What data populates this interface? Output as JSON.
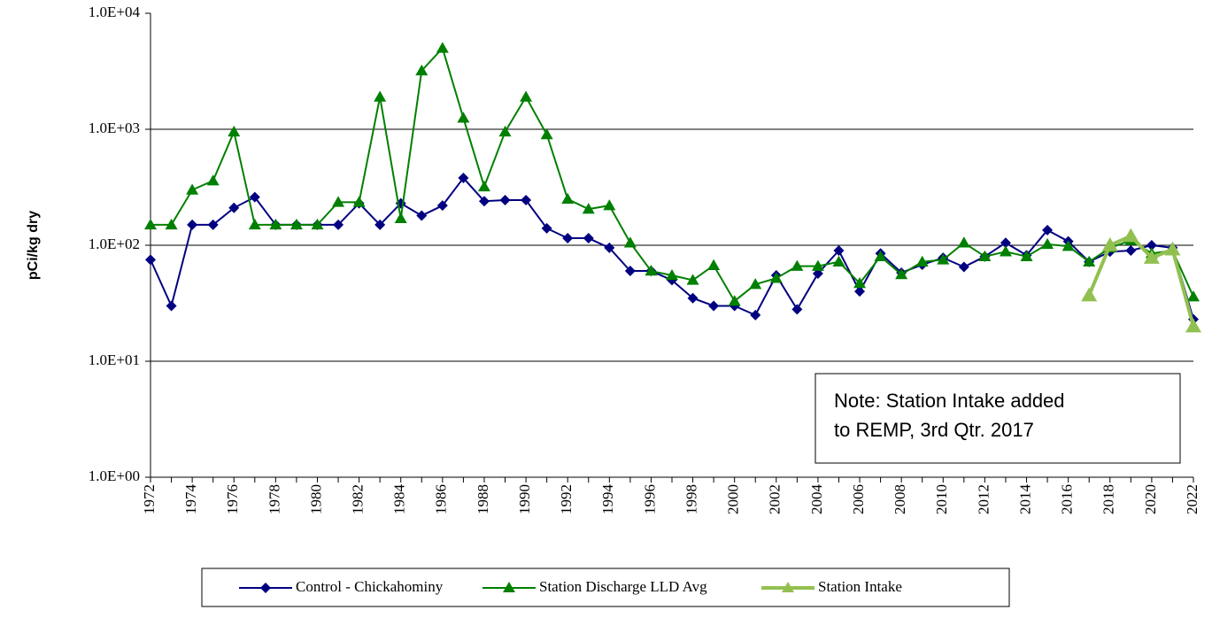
{
  "chart_data": {
    "type": "line",
    "y_label": "pCi/kg dry",
    "y_scale": "log",
    "grid": true,
    "legend_position": "bottom",
    "annotation": [
      "Note: Station Intake added",
      "to REMP, 3rd Qtr. 2017"
    ],
    "categories": [
      "1972",
      null,
      "1974",
      null,
      "1976",
      null,
      "1978",
      null,
      "1980",
      null,
      "1982",
      null,
      "1984",
      null,
      "1986",
      null,
      "1988",
      null,
      "1990",
      null,
      "1992",
      null,
      "1994",
      null,
      "1996",
      null,
      "1998",
      null,
      "2000",
      null,
      "2002",
      null,
      "2004",
      null,
      "2006",
      null,
      "2008",
      null,
      "2010",
      null,
      "2012",
      null,
      "2014",
      null,
      "2016",
      null,
      "2018",
      null,
      "2020",
      null,
      "2022"
    ],
    "ylim": [
      1,
      10000
    ],
    "yticks": [
      {
        "value": 1,
        "label": "1.0E+00"
      },
      {
        "value": 10,
        "label": "1.0E+01"
      },
      {
        "value": 100,
        "label": "1.0E+02"
      },
      {
        "value": 1000,
        "label": "1.0E+03"
      },
      {
        "value": 10000,
        "label": "1.0E+04"
      }
    ],
    "series": [
      {
        "name": "Control - Chickahominy",
        "color": "#000080",
        "marker": "diamond",
        "values": [
          75,
          30,
          150,
          150,
          210,
          260,
          150,
          150,
          150,
          150,
          230,
          150,
          230,
          180,
          220,
          380,
          240,
          245,
          245,
          140,
          115,
          115,
          95,
          60,
          60,
          50,
          35,
          30,
          30,
          25,
          55,
          28,
          57,
          90,
          40,
          85,
          58,
          68,
          78,
          65,
          80,
          105,
          82,
          135,
          108,
          72,
          88,
          90,
          100,
          95,
          23
        ]
      },
      {
        "name": "Station Discharge LLD Avg",
        "color": "#008000",
        "marker": "triangle",
        "values": [
          150,
          150,
          300,
          360,
          950,
          150,
          150,
          150,
          150,
          235,
          235,
          1900,
          170,
          3200,
          5000,
          1250,
          320,
          950,
          1900,
          900,
          250,
          205,
          220,
          105,
          60,
          55,
          50,
          67,
          33,
          46,
          52,
          66,
          66,
          72,
          47,
          80,
          56,
          72,
          75,
          105,
          80,
          88,
          80,
          102,
          98,
          72,
          95,
          110,
          85,
          90,
          36
        ]
      },
      {
        "name": "Station Intake",
        "color": "#92c050",
        "marker": "triangle",
        "values": [
          null,
          null,
          null,
          null,
          null,
          null,
          null,
          null,
          null,
          null,
          null,
          null,
          null,
          null,
          null,
          null,
          null,
          null,
          null,
          null,
          null,
          null,
          null,
          null,
          null,
          null,
          null,
          null,
          null,
          null,
          null,
          null,
          null,
          null,
          null,
          null,
          null,
          null,
          null,
          null,
          null,
          null,
          null,
          null,
          null,
          37,
          100,
          120,
          78,
          92,
          20
        ]
      }
    ]
  }
}
